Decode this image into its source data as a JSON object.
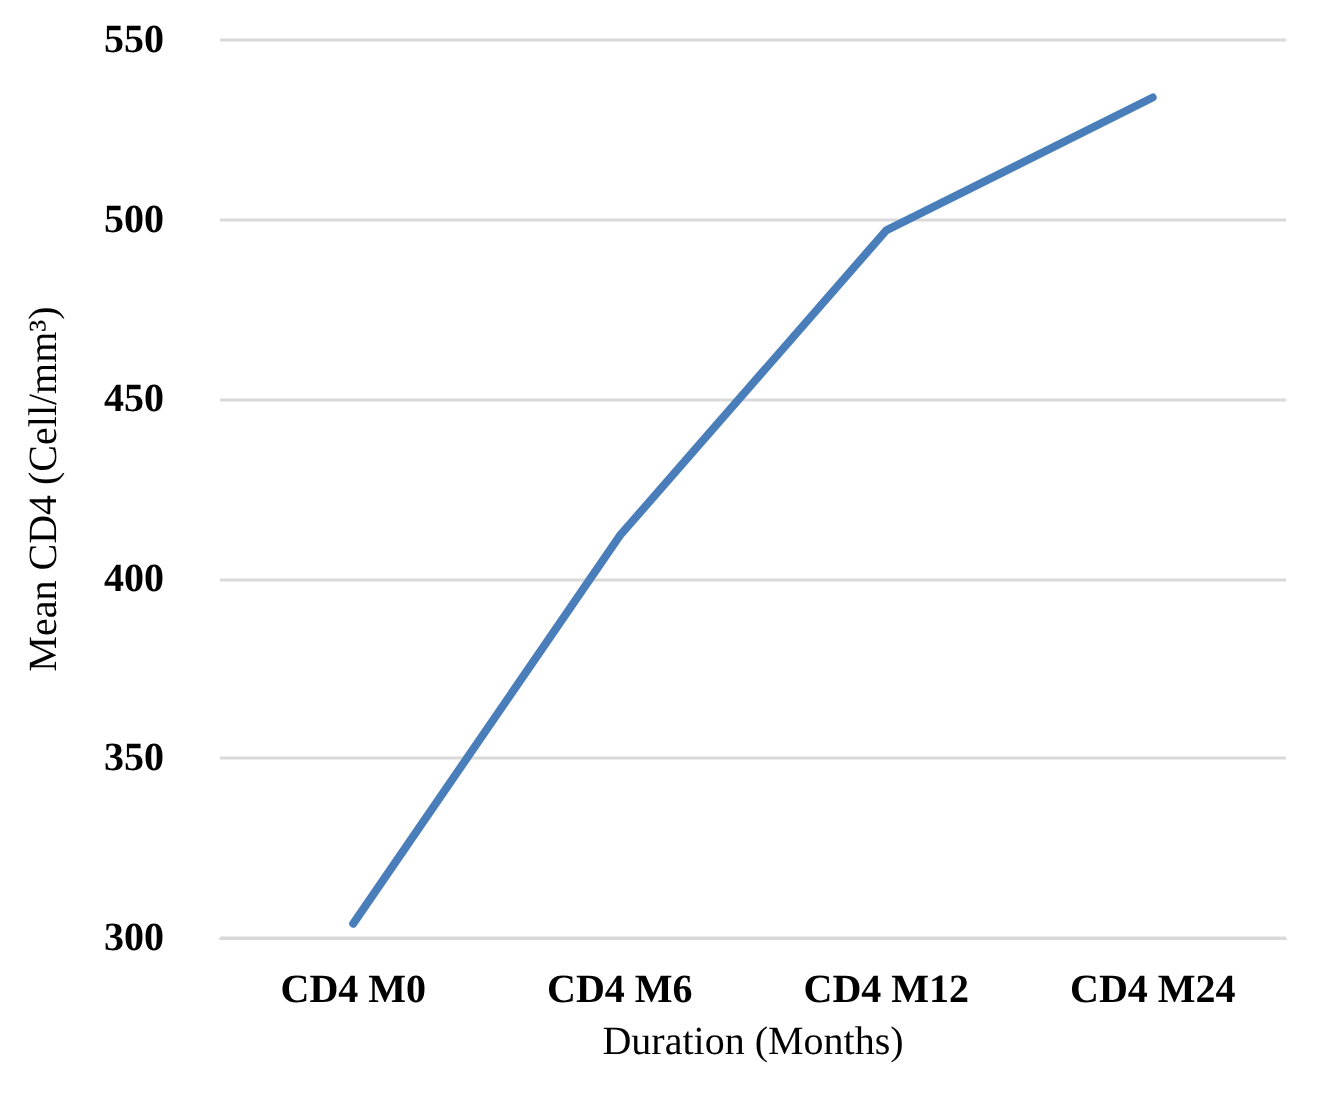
{
  "chart_data": {
    "type": "line",
    "xlabel": "Duration (Months)",
    "ylabel": "Mean CD4 (Cell/mm³)",
    "categories": [
      "CD4 M0",
      "CD4 M6",
      "CD4 M12",
      "CD4 M24"
    ],
    "series": [
      {
        "color": "#4a7ebb",
        "values": [
          304,
          412,
          497,
          534
        ]
      }
    ],
    "ylim": [
      300,
      550
    ],
    "yticks": [
      300,
      350,
      400,
      450,
      500,
      550
    ],
    "grid": "y",
    "marker": "none",
    "line_style": "solid"
  }
}
